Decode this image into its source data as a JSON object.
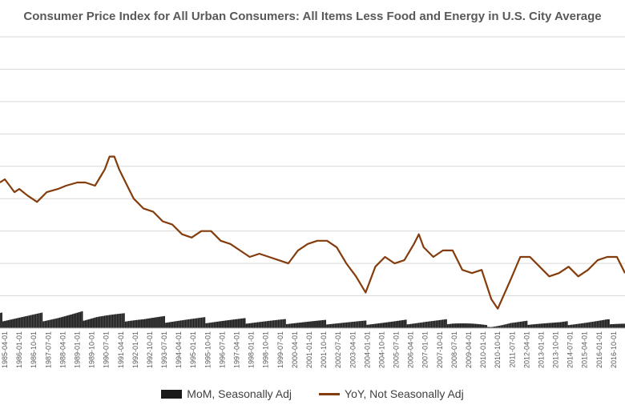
{
  "chart_data": {
    "type": "bar+line",
    "title": "Consumer Price Index for All Urban Consumers: All Items Less Food and Energy in U.S. City Average",
    "xlabel": "",
    "ylabel": "",
    "grid": true,
    "legend_position": "bottom",
    "x_start": "1985-01",
    "x_end": "2017-05",
    "ylim": [
      0,
      9
    ],
    "y_gridlines": [
      0,
      1,
      2,
      3,
      4,
      5,
      6,
      7,
      8,
      9
    ],
    "x_tick_labels": [
      "1985-04-01",
      "1986-01-01",
      "1986-10-01",
      "1987-07-01",
      "1988-04-01",
      "1989-01-01",
      "1989-10-01",
      "1990-07-01",
      "1991-04-01",
      "1992-01-01",
      "1992-10-01",
      "1993-07-01",
      "1994-04-01",
      "1995-01-01",
      "1995-10-01",
      "1996-07-01",
      "1997-04-01",
      "1998-01-01",
      "1998-10-01",
      "1999-07-01",
      "2000-04-01",
      "2001-01-01",
      "2001-10-01",
      "2002-07-01",
      "2003-04-01",
      "2004-01-01",
      "2004-10-01",
      "2005-07-01",
      "2006-04-01",
      "2007-01-01",
      "2007-10-01",
      "2008-07-01",
      "2009-04-01",
      "2010-01-01",
      "2010-10-01",
      "2011-07-01",
      "2012-04-01",
      "2013-01-01",
      "2013-10-01",
      "2014-07-01",
      "2015-04-01",
      "2016-01-01",
      "2016-10-01"
    ],
    "series": [
      {
        "name": "MoM, Seasonally Adj",
        "type": "bar",
        "color": "#1a1a1a",
        "anchors": [
          [
            "1985-01",
            0.35
          ],
          [
            "1988-01",
            0.35
          ],
          [
            "1990-01",
            0.4
          ],
          [
            "1991-01",
            0.35
          ],
          [
            "1992-06",
            0.28
          ],
          [
            "1995-01",
            0.25
          ],
          [
            "2000-01",
            0.2
          ],
          [
            "2002-06",
            0.18
          ],
          [
            "2004-01",
            0.17
          ],
          [
            "2007-01",
            0.2
          ],
          [
            "2008-06",
            0.2
          ],
          [
            "2009-06",
            0.13
          ],
          [
            "2010-06",
            0.05
          ],
          [
            "2011-06",
            0.15
          ],
          [
            "2012-06",
            0.17
          ],
          [
            "2014-01",
            0.15
          ],
          [
            "2016-06",
            0.2
          ],
          [
            "2017-05",
            0.15
          ]
        ]
      },
      {
        "name": "YoY, Not Seasonally Adj",
        "type": "line",
        "color": "#843c0c",
        "points": [
          [
            "1985-01",
            4.5
          ],
          [
            "1985-04",
            4.6
          ],
          [
            "1985-10",
            4.2
          ],
          [
            "1986-01",
            4.3
          ],
          [
            "1986-06",
            4.1
          ],
          [
            "1986-12",
            3.9
          ],
          [
            "1987-06",
            4.2
          ],
          [
            "1988-01",
            4.3
          ],
          [
            "1988-06",
            4.4
          ],
          [
            "1989-01",
            4.5
          ],
          [
            "1989-06",
            4.5
          ],
          [
            "1989-12",
            4.4
          ],
          [
            "1990-06",
            4.9
          ],
          [
            "1990-09",
            5.3
          ],
          [
            "1990-12",
            5.3
          ],
          [
            "1991-03",
            4.9
          ],
          [
            "1991-06",
            4.6
          ],
          [
            "1991-09",
            4.3
          ],
          [
            "1991-12",
            4.0
          ],
          [
            "1992-06",
            3.7
          ],
          [
            "1992-12",
            3.6
          ],
          [
            "1993-06",
            3.3
          ],
          [
            "1993-12",
            3.2
          ],
          [
            "1994-06",
            2.9
          ],
          [
            "1994-12",
            2.8
          ],
          [
            "1995-06",
            3.0
          ],
          [
            "1995-12",
            3.0
          ],
          [
            "1996-06",
            2.7
          ],
          [
            "1996-12",
            2.6
          ],
          [
            "1997-06",
            2.4
          ],
          [
            "1997-12",
            2.2
          ],
          [
            "1998-06",
            2.3
          ],
          [
            "1998-12",
            2.2
          ],
          [
            "1999-06",
            2.1
          ],
          [
            "1999-12",
            2.0
          ],
          [
            "2000-06",
            2.4
          ],
          [
            "2000-12",
            2.6
          ],
          [
            "2001-06",
            2.7
          ],
          [
            "2001-12",
            2.7
          ],
          [
            "2002-06",
            2.5
          ],
          [
            "2002-12",
            2.0
          ],
          [
            "2003-06",
            1.6
          ],
          [
            "2003-12",
            1.1
          ],
          [
            "2004-06",
            1.9
          ],
          [
            "2004-12",
            2.2
          ],
          [
            "2005-06",
            2.0
          ],
          [
            "2005-12",
            2.1
          ],
          [
            "2006-06",
            2.6
          ],
          [
            "2006-09",
            2.9
          ],
          [
            "2006-12",
            2.5
          ],
          [
            "2007-06",
            2.2
          ],
          [
            "2007-12",
            2.4
          ],
          [
            "2008-06",
            2.4
          ],
          [
            "2008-12",
            1.8
          ],
          [
            "2009-06",
            1.7
          ],
          [
            "2009-12",
            1.8
          ],
          [
            "2010-06",
            0.9
          ],
          [
            "2010-10",
            0.6
          ],
          [
            "2011-06",
            1.5
          ],
          [
            "2011-12",
            2.2
          ],
          [
            "2012-06",
            2.2
          ],
          [
            "2012-12",
            1.9
          ],
          [
            "2013-06",
            1.6
          ],
          [
            "2013-12",
            1.7
          ],
          [
            "2014-06",
            1.9
          ],
          [
            "2014-12",
            1.6
          ],
          [
            "2015-06",
            1.8
          ],
          [
            "2015-12",
            2.1
          ],
          [
            "2016-06",
            2.2
          ],
          [
            "2016-12",
            2.2
          ],
          [
            "2017-05",
            1.7
          ]
        ]
      }
    ]
  }
}
